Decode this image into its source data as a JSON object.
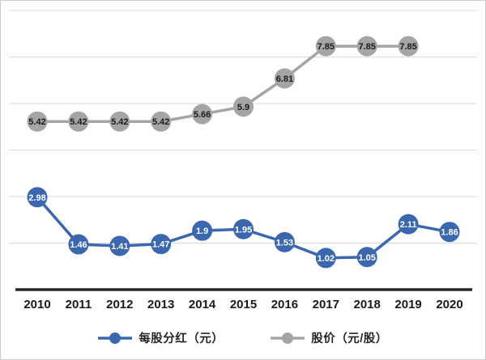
{
  "chart_data": {
    "type": "line",
    "x": [
      "2010",
      "2011",
      "2012",
      "2013",
      "2014",
      "2015",
      "2016",
      "2017",
      "2018",
      "2019",
      "2020"
    ],
    "series": [
      {
        "name": "每股分红（元）",
        "color": "#3A67AD",
        "label_color": "#ffffff",
        "values": [
          2.98,
          1.46,
          1.41,
          1.47,
          1.9,
          1.95,
          1.53,
          1.02,
          1.05,
          2.11,
          1.86
        ]
      },
      {
        "name": "股价（元/股）",
        "color": "#A5A5A5",
        "label_color": "#1a1a1a",
        "values": [
          5.42,
          5.42,
          5.42,
          5.42,
          5.66,
          5.9,
          6.81,
          7.85,
          7.85,
          7.85,
          null
        ]
      }
    ],
    "title": "",
    "xlabel": "",
    "ylabel": "",
    "ylim": [
      0,
      9
    ],
    "gridline_step": 1.5,
    "grid": true,
    "legend_position": "bottom",
    "axis_color": "#262626",
    "gridline_color": "#d9d9d9"
  }
}
